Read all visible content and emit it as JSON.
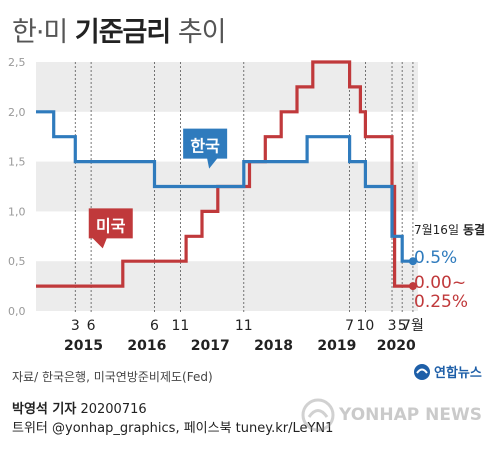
{
  "title": {
    "prefix": "한·미",
    "main": "기준금리",
    "suffix": "추이"
  },
  "chart_data": {
    "type": "line",
    "ylim": [
      0,
      2.5
    ],
    "yticks": [
      "0,0",
      "0,5",
      "1,0",
      "1,5",
      "2,0",
      "2,5"
    ],
    "xlim": [
      2014.55,
      2020.58
    ],
    "month_ticks": [
      {
        "label": "3",
        "x": 2015.17
      },
      {
        "label": "6",
        "x": 2015.42
      },
      {
        "label": "6",
        "x": 2016.42
      },
      {
        "label": "11",
        "x": 2016.83
      },
      {
        "label": "11",
        "x": 2017.83
      },
      {
        "label": "7",
        "x": 2019.5
      },
      {
        "label": "10",
        "x": 2019.75
      },
      {
        "label": "3",
        "x": 2020.17
      },
      {
        "label": "5",
        "x": 2020.33
      },
      {
        "label": "7월",
        "x": 2020.5
      }
    ],
    "year_labels": [
      {
        "label": "2015",
        "x": 2015.3
      },
      {
        "label": "2016",
        "x": 2016.3
      },
      {
        "label": "2017",
        "x": 2017.3
      },
      {
        "label": "2018",
        "x": 2018.3
      },
      {
        "label": "2019",
        "x": 2019.3
      },
      {
        "label": "2020",
        "x": 2020.3
      }
    ],
    "series": [
      {
        "name": "한국",
        "color": "#2f7bbd",
        "points": [
          [
            2014.55,
            2.0
          ],
          [
            2014.83,
            2.0
          ],
          [
            2014.83,
            1.75
          ],
          [
            2015.17,
            1.75
          ],
          [
            2015.17,
            1.5
          ],
          [
            2015.42,
            1.5
          ],
          [
            2015.42,
            1.5
          ],
          [
            2016.42,
            1.5
          ],
          [
            2016.42,
            1.25
          ],
          [
            2017.83,
            1.25
          ],
          [
            2017.83,
            1.5
          ],
          [
            2018.83,
            1.5
          ],
          [
            2018.83,
            1.75
          ],
          [
            2019.5,
            1.75
          ],
          [
            2019.5,
            1.5
          ],
          [
            2019.75,
            1.5
          ],
          [
            2019.75,
            1.25
          ],
          [
            2020.17,
            1.25
          ],
          [
            2020.17,
            0.75
          ],
          [
            2020.33,
            0.75
          ],
          [
            2020.33,
            0.5
          ],
          [
            2020.5,
            0.5
          ]
        ]
      },
      {
        "name": "미국",
        "color": "#c0393b",
        "points": [
          [
            2014.55,
            0.25
          ],
          [
            2015.92,
            0.25
          ],
          [
            2015.92,
            0.5
          ],
          [
            2016.92,
            0.5
          ],
          [
            2016.92,
            0.75
          ],
          [
            2017.17,
            0.75
          ],
          [
            2017.17,
            1.0
          ],
          [
            2017.42,
            1.0
          ],
          [
            2017.42,
            1.25
          ],
          [
            2017.92,
            1.25
          ],
          [
            2017.92,
            1.5
          ],
          [
            2018.17,
            1.5
          ],
          [
            2018.17,
            1.75
          ],
          [
            2018.42,
            1.75
          ],
          [
            2018.42,
            2.0
          ],
          [
            2018.67,
            2.0
          ],
          [
            2018.67,
            2.25
          ],
          [
            2018.92,
            2.25
          ],
          [
            2018.92,
            2.5
          ],
          [
            2019.5,
            2.5
          ],
          [
            2019.5,
            2.25
          ],
          [
            2019.67,
            2.25
          ],
          [
            2019.67,
            2.0
          ],
          [
            2019.75,
            2.0
          ],
          [
            2019.75,
            1.75
          ],
          [
            2020.17,
            1.75
          ],
          [
            2020.17,
            1.25
          ],
          [
            2020.21,
            1.25
          ],
          [
            2020.21,
            0.25
          ],
          [
            2020.5,
            0.25
          ]
        ]
      }
    ],
    "series_labels": {
      "korea": "한국",
      "us": "미국"
    },
    "annotation": {
      "date": "7월16일",
      "status": "동결",
      "korea_value": "0.5%",
      "us_value_line1": "0.00~",
      "us_value_line2": "0.25%"
    },
    "colors": {
      "korea": "#2f7bbd",
      "us": "#c0393b",
      "band": "#ececec",
      "axis_text": "#999999"
    }
  },
  "footer": {
    "source": "자료/ 한국은행, 미국연방준비제도(Fed)",
    "byline_name": "박영석 기자",
    "byline_date": " 20200716",
    "twitter": "트위터 @yonhap_graphics, 페이스북 tuney.kr/LeYN1",
    "agency_logo": "연합뉴스",
    "watermark": "YONHAP NEWS"
  }
}
